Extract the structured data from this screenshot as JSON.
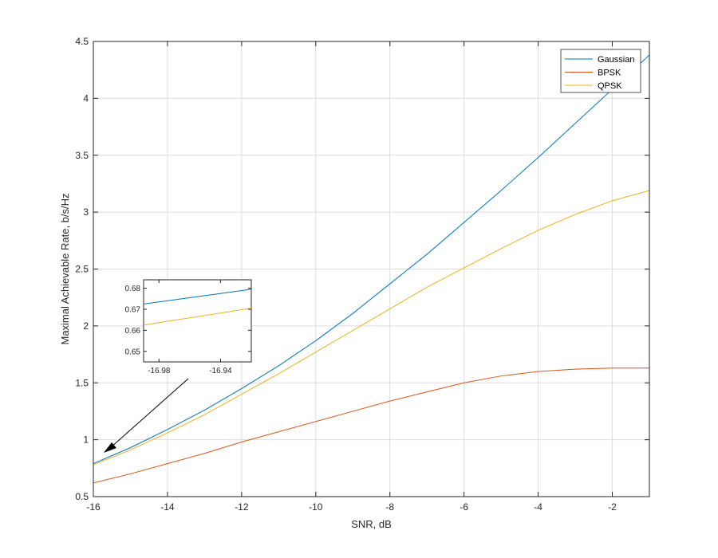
{
  "chart_data": {
    "type": "line",
    "xlabel": "SNR, dB",
    "ylabel": "Maximal Achievable Rate, b/s/Hz",
    "xlim": [
      -16,
      -1
    ],
    "ylim": [
      0.5,
      4.5
    ],
    "x_ticks": [
      -16,
      -14,
      -12,
      -10,
      -8,
      -6,
      -4,
      -2
    ],
    "y_ticks": [
      0.5,
      1,
      1.5,
      2,
      2.5,
      3,
      3.5,
      4,
      4.5
    ],
    "x_tick_labels": [
      "-16",
      "-14",
      "-12",
      "-10",
      "-8",
      "-6",
      "-4",
      "-2"
    ],
    "y_tick_labels": [
      "0.5",
      "1",
      "1.5",
      "2",
      "2.5",
      "3",
      "3.5",
      "4",
      "4.5"
    ],
    "grid": true,
    "legend_position": "top-right",
    "x": [
      -16,
      -15,
      -14,
      -13,
      -12,
      -11,
      -10,
      -9,
      -8,
      -7,
      -6,
      -5,
      -4,
      -3,
      -2,
      -1
    ],
    "series": [
      {
        "name": "Gaussian",
        "color": "#0072BD",
        "values": [
          0.79,
          0.93,
          1.09,
          1.26,
          1.45,
          1.65,
          1.87,
          2.11,
          2.37,
          2.63,
          2.91,
          3.19,
          3.48,
          3.78,
          4.08,
          4.38
        ]
      },
      {
        "name": "BPSK",
        "color": "#D95319",
        "values": [
          0.62,
          0.7,
          0.79,
          0.88,
          0.98,
          1.07,
          1.16,
          1.25,
          1.34,
          1.42,
          1.5,
          1.56,
          1.6,
          1.62,
          1.63,
          1.63
        ]
      },
      {
        "name": "QPSK",
        "color": "#EDB120",
        "values": [
          0.78,
          0.91,
          1.06,
          1.22,
          1.4,
          1.58,
          1.77,
          1.96,
          2.15,
          2.34,
          2.51,
          2.68,
          2.84,
          2.98,
          3.1,
          3.19
        ]
      }
    ],
    "inset": {
      "xlim": [
        -16.99,
        -16.92
      ],
      "ylim": [
        0.645,
        0.684
      ],
      "x_ticks": [
        -16.98,
        -16.94
      ],
      "x_tick_labels": [
        "-16.98",
        "-16.94"
      ],
      "y_ticks": [
        0.65,
        0.66,
        0.67,
        0.68
      ],
      "y_tick_labels": [
        "0.65",
        "0.66",
        "0.67",
        "0.68"
      ],
      "series": [
        {
          "name": "Gaussian",
          "color": "#0072BD",
          "x": [
            -16.99,
            -16.92
          ],
          "values": [
            0.6725,
            0.6795
          ]
        },
        {
          "name": "QPSK",
          "color": "#EDB120",
          "x": [
            -16.99,
            -16.92
          ],
          "values": [
            0.6625,
            0.6705
          ]
        }
      ]
    }
  }
}
